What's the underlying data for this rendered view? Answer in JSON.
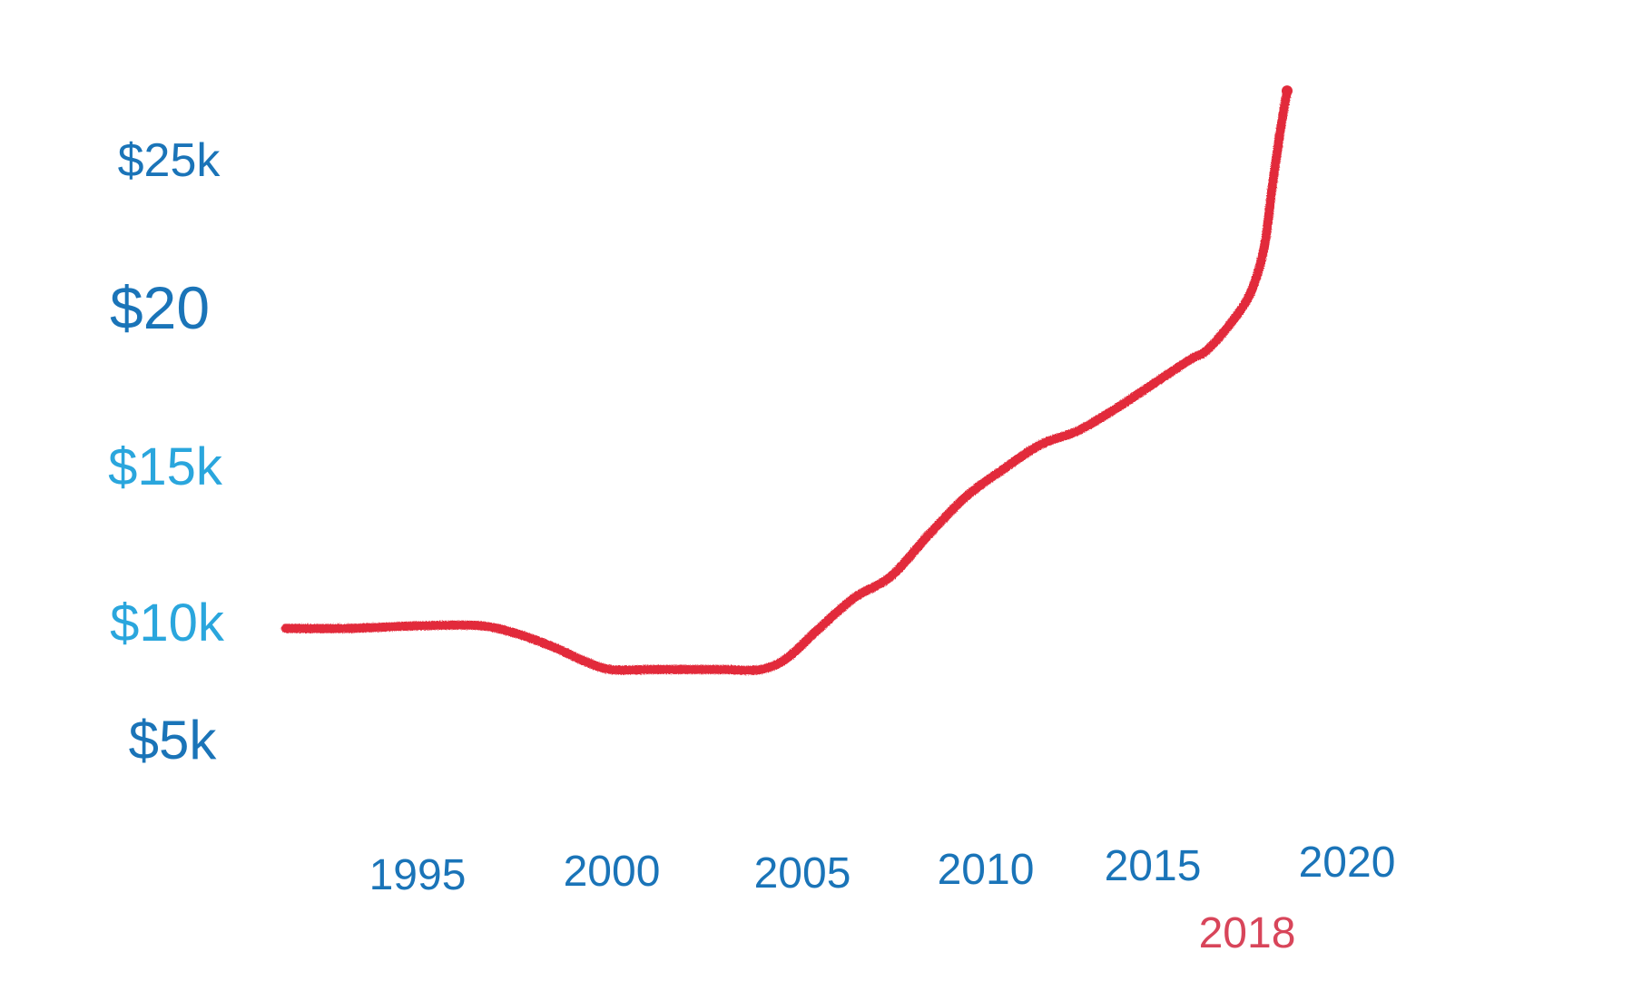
{
  "chart_data": {
    "type": "line",
    "title": "",
    "xlabel": "",
    "ylabel": "",
    "grid": false,
    "xlim": [
      1990.7,
      2023.2
    ],
    "ylim": [
      1.4,
      28.4
    ],
    "x_ticks": [
      {
        "value": 1995,
        "label": "1995"
      },
      {
        "value": 2000,
        "label": "2000"
      },
      {
        "value": 2005,
        "label": "2005"
      },
      {
        "value": 2010,
        "label": "2010"
      },
      {
        "value": 2015,
        "label": "2015"
      },
      {
        "value": 2020,
        "label": "2020"
      }
    ],
    "y_ticks": [
      {
        "value": 5,
        "label": "$5k"
      },
      {
        "value": 10,
        "label": "$10k"
      },
      {
        "value": 15,
        "label": "$15k"
      },
      {
        "value": 20,
        "label": "$20"
      },
      {
        "value": 25,
        "label": "$25k"
      }
    ],
    "annotation": {
      "x": 2018,
      "label": "2018"
    },
    "series": [
      {
        "name": "",
        "color": "#e2293a",
        "x": [
          1991.3,
          1993,
          1995,
          1996.5,
          1997.5,
          1998.5,
          1999.3,
          2000,
          2001,
          2002,
          2003,
          2004,
          2004.7,
          2005.5,
          2006.5,
          2007.5,
          2008.5,
          2009.5,
          2010.5,
          2011.5,
          2012.5,
          2013.5,
          2014.5,
          2015.5,
          2016,
          2016.8,
          2017.2,
          2017.5,
          2017.7,
          2017.9,
          2018.1
        ],
        "y": [
          8.4,
          8.4,
          8.5,
          8.5,
          8.2,
          7.7,
          7.2,
          6.9,
          6.9,
          6.9,
          6.9,
          6.9,
          7.3,
          8.3,
          9.5,
          10.3,
          11.8,
          13.2,
          14.2,
          15.1,
          15.6,
          16.4,
          17.3,
          18.2,
          18.6,
          19.9,
          20.9,
          22.4,
          24.5,
          26.4,
          28.0
        ]
      }
    ]
  },
  "colors": {
    "axis": "#1f1f1f",
    "tick_text_dark": "#1a74b8",
    "tick_text_light": "#2aa6dd",
    "line": "#e2293a",
    "annotation": "#d8455a"
  }
}
